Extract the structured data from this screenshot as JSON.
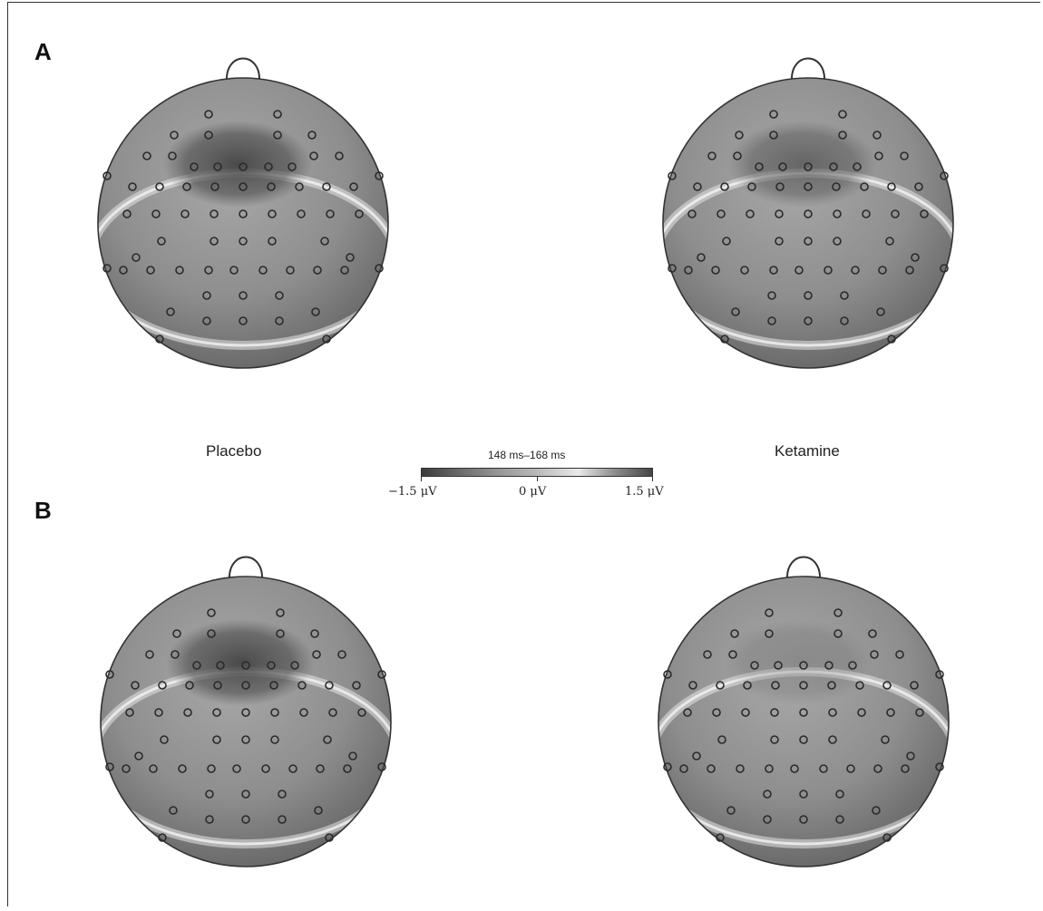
{
  "panels": [
    {
      "letter": "A"
    },
    {
      "letter": "B"
    }
  ],
  "conditions": {
    "left": "Placebo",
    "right": "Ketamine"
  },
  "colorbar": {
    "title": "148 ms–168 ms",
    "min_label": "−1.5 μV",
    "mid_label": "0 μV",
    "max_label": "1.5 μV",
    "range_uV": [
      -1.5,
      1.5
    ],
    "colormap": [
      "#3c3c3c",
      "#9a9a9a",
      "#b9b9b9",
      "#e9e9e9",
      "#454545"
    ]
  },
  "maps": [
    {
      "panel": "A",
      "condition": "Placebo",
      "negative_cluster": "strong"
    },
    {
      "panel": "A",
      "condition": "Ketamine",
      "negative_cluster": "moderate"
    },
    {
      "panel": "B",
      "condition": "Placebo",
      "negative_cluster": "strong"
    },
    {
      "panel": "B",
      "condition": "Ketamine",
      "negative_cluster": "weak"
    }
  ]
}
